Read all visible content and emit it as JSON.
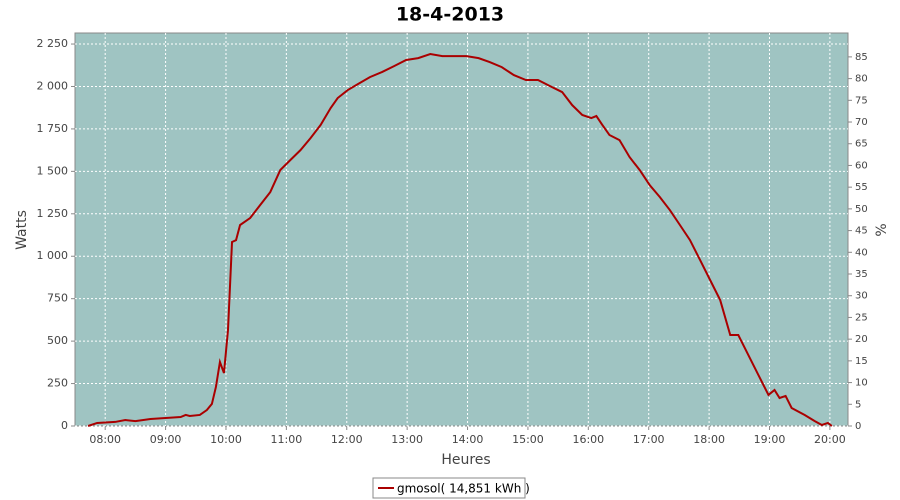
{
  "chart_data": {
    "type": "line",
    "title": "18-4-2013",
    "x_label": "Heures",
    "y_label": "Watts",
    "y2_label": "%",
    "x": [
      463,
      472,
      490,
      500,
      510,
      525,
      540,
      555,
      560,
      564,
      574,
      581,
      586,
      590,
      594,
      598,
      602,
      606,
      610,
      614,
      624,
      634,
      644,
      654,
      664,
      674,
      684,
      694,
      704,
      711,
      721,
      731,
      743,
      755,
      767,
      779,
      791,
      803,
      815,
      827,
      839,
      851,
      862,
      874,
      886,
      898,
      910,
      922,
      934,
      944,
      954,
      963,
      968,
      974,
      981,
      991,
      1001,
      1011,
      1021,
      1031,
      1041,
      1051,
      1061,
      1071,
      1081,
      1091,
      1101,
      1109,
      1119,
      1129,
      1139,
      1145,
      1150,
      1156,
      1162,
      1175,
      1185,
      1192,
      1198,
      1202
    ],
    "series": [
      {
        "name": "gmosol( 14,851 kWh )",
        "color": "#aa0000",
        "values": [
          0,
          18,
          24,
          35,
          29,
          41,
          47,
          53,
          65,
          59,
          65,
          94,
          130,
          230,
          377,
          312,
          565,
          1084,
          1095,
          1184,
          1225,
          1302,
          1378,
          1508,
          1567,
          1625,
          1696,
          1773,
          1873,
          1932,
          1979,
          2014,
          2055,
          2085,
          2120,
          2156,
          2167,
          2191,
          2179,
          2179,
          2179,
          2167,
          2144,
          2114,
          2067,
          2038,
          2038,
          2002,
          1967,
          1890,
          1832,
          1814,
          1826,
          1773,
          1714,
          1684,
          1584,
          1508,
          1419,
          1349,
          1272,
          1184,
          1095,
          978,
          860,
          742,
          536,
          536,
          418,
          300,
          183,
          212,
          165,
          177,
          106,
          65,
          29,
          6,
          18,
          0
        ]
      }
    ],
    "xlim": [
      450,
      1218
    ],
    "xticks": [
      {
        "value": 480,
        "label": "08:00"
      },
      {
        "value": 540,
        "label": "09:00"
      },
      {
        "value": 600,
        "label": "10:00"
      },
      {
        "value": 660,
        "label": "11:00"
      },
      {
        "value": 720,
        "label": "12:00"
      },
      {
        "value": 780,
        "label": "13:00"
      },
      {
        "value": 840,
        "label": "14:00"
      },
      {
        "value": 900,
        "label": "15:00"
      },
      {
        "value": 960,
        "label": "16:00"
      },
      {
        "value": 1020,
        "label": "17:00"
      },
      {
        "value": 1080,
        "label": "18:00"
      },
      {
        "value": 1140,
        "label": "19:00"
      },
      {
        "value": 1200,
        "label": "20:00"
      }
    ],
    "ylim": [
      0,
      2315
    ],
    "yticks": [
      0,
      250,
      500,
      750,
      {
        "value": 1000,
        "label": "1 000"
      },
      {
        "value": 1250,
        "label": "1 250"
      },
      {
        "value": 1500,
        "label": "1 500"
      },
      {
        "value": 1750,
        "label": "1 750"
      },
      {
        "value": 2000,
        "label": "2 000"
      },
      {
        "value": 2250,
        "label": "2 250"
      }
    ],
    "y2lim": [
      0,
      90.5
    ],
    "y2ticks": [
      0,
      5,
      10,
      15,
      20,
      25,
      30,
      35,
      40,
      45,
      50,
      55,
      60,
      65,
      70,
      75,
      80,
      85
    ],
    "grid": true,
    "background": "#9fc4c2",
    "legend": "bottom"
  }
}
